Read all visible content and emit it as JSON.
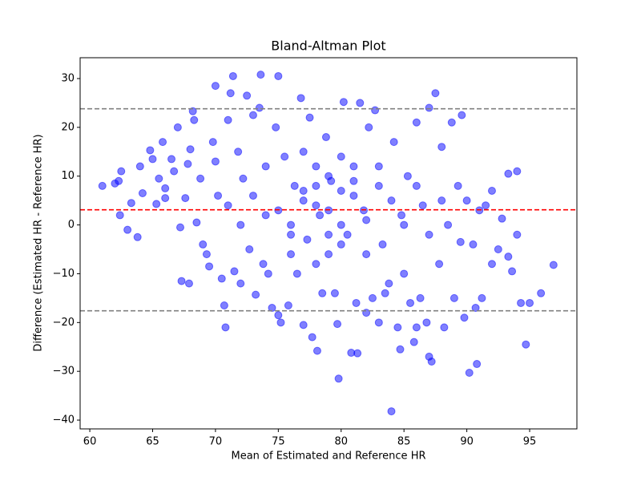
{
  "chart_data": {
    "type": "scatter",
    "title": "Bland-Altman Plot",
    "xlabel": "Mean of Estimated and Reference HR",
    "ylabel": "Difference (Estimated HR - Reference HR)",
    "xlim": [
      59.23,
      98.76
    ],
    "ylim": [
      -41.8,
      34.27
    ],
    "xticks": [
      60,
      65,
      70,
      75,
      80,
      85,
      90,
      95
    ],
    "yticks": [
      {
        "value": -40,
        "label": "−40"
      },
      {
        "value": -30,
        "label": "−30"
      },
      {
        "value": -20,
        "label": "−20"
      },
      {
        "value": -10,
        "label": "−10"
      },
      0,
      10,
      20,
      30
    ],
    "hlines": [
      {
        "value": 3.1,
        "color": "#ff0000"
      },
      {
        "value": 23.8,
        "color": "#808080"
      },
      {
        "value": -17.6,
        "color": "#808080"
      }
    ],
    "series": [
      {
        "color": "#0000ff",
        "x": [
          61,
          62,
          62.3,
          62.5,
          62.4,
          63,
          63.8,
          63.3,
          64,
          64.2,
          64.8,
          65,
          65.3,
          65.5,
          65.8,
          66,
          66,
          66.5,
          66.7,
          67,
          67.2,
          67.3,
          67.6,
          67.8,
          67.9,
          68,
          68.2,
          68.3,
          68.5,
          68.8,
          69,
          69.3,
          69.5,
          69.8,
          70,
          70,
          70.2,
          70.5,
          70.7,
          70.8,
          71,
          71.2,
          71.4,
          71.5,
          71.8,
          72,
          72.2,
          72.5,
          72.7,
          73,
          73.2,
          73.5,
          73.6,
          73.8,
          74,
          74.2,
          74.5,
          74.8,
          75,
          75,
          75.2,
          75.5,
          75.8,
          76,
          76.3,
          76.5,
          76.8,
          77,
          77,
          77.3,
          77.5,
          77.7,
          78,
          78.1,
          78.3,
          78.5,
          78.8,
          79,
          79.2,
          79.5,
          79.8,
          79.7,
          80,
          80.2,
          80.5,
          80.8,
          81,
          81.2,
          81.3,
          81.5,
          81.8,
          82,
          82.2,
          82.5,
          82.7,
          83,
          83,
          83.3,
          83.5,
          83.8,
          84,
          84.2,
          84.5,
          84.7,
          84.8,
          85,
          85.3,
          85.5,
          85.8,
          86,
          86,
          86.3,
          86.5,
          86.8,
          87,
          87,
          87.2,
          87.5,
          87.8,
          88,
          88.2,
          88.5,
          88.8,
          89,
          89.3,
          89.5,
          89.6,
          89.8,
          90,
          90.2,
          90.5,
          90.7,
          90.8,
          91,
          91.2,
          91.5,
          92,
          92,
          92.5,
          92.8,
          93.3,
          93.3,
          93.6,
          94,
          94,
          94.3,
          94.7,
          95,
          95.9,
          96.9,
          76,
          77,
          78,
          79,
          80,
          81,
          82,
          83,
          78,
          77,
          79,
          80,
          82,
          84,
          75,
          76,
          74,
          73,
          72,
          71,
          85,
          86,
          87,
          88,
          81,
          80,
          79,
          78
        ],
        "values": [
          8,
          8.5,
          9,
          11,
          2,
          -1,
          -2.5,
          4.5,
          12,
          6.5,
          15.3,
          13.5,
          4.3,
          9.5,
          17,
          7.5,
          5.5,
          13.5,
          11,
          20,
          -0.5,
          -11.5,
          5.5,
          12.5,
          -12,
          15.5,
          23.3,
          21.5,
          0.5,
          9.5,
          -4,
          -6,
          -8.5,
          17,
          28.5,
          13,
          6,
          -11,
          -16.5,
          -21,
          21.5,
          27,
          30.5,
          -9.5,
          15,
          -12,
          9.5,
          26.5,
          -5,
          22.5,
          -14.3,
          24,
          30.8,
          -8,
          12,
          -10,
          -17,
          20,
          30.5,
          -18.5,
          -20,
          14,
          -16.5,
          -2,
          8,
          -10,
          26,
          -20.5,
          5,
          -3,
          22,
          -23,
          12,
          -25.8,
          2,
          -14,
          18,
          -6,
          9,
          -14,
          -31.5,
          -20.3,
          7,
          25.2,
          -2,
          -26.2,
          12,
          -16,
          -26.3,
          25,
          3,
          -18,
          20,
          -15,
          23.5,
          -20,
          8,
          -4,
          -14,
          -12,
          -38.2,
          17,
          -21,
          -25.5,
          2,
          -10,
          10,
          -16,
          -24,
          21,
          -21,
          -15,
          4,
          -20,
          24,
          -27,
          -28,
          27,
          -8,
          16,
          -21,
          0,
          21,
          -15,
          8,
          -3.5,
          22.5,
          -19,
          5,
          -30.3,
          -4,
          -17,
          -28.5,
          3,
          -15,
          4,
          7,
          -8,
          -5,
          1.3,
          -6.5,
          10.5,
          -9.5,
          11,
          -2,
          -16,
          -24.5,
          -16,
          -14,
          -8.2,
          0,
          7,
          4,
          10,
          -4,
          6,
          1,
          12,
          -8,
          15,
          3,
          14,
          -6,
          5,
          3,
          -6,
          2,
          6,
          0,
          4,
          0,
          8,
          -2,
          5,
          9,
          0,
          -2,
          8
        ]
      }
    ]
  }
}
